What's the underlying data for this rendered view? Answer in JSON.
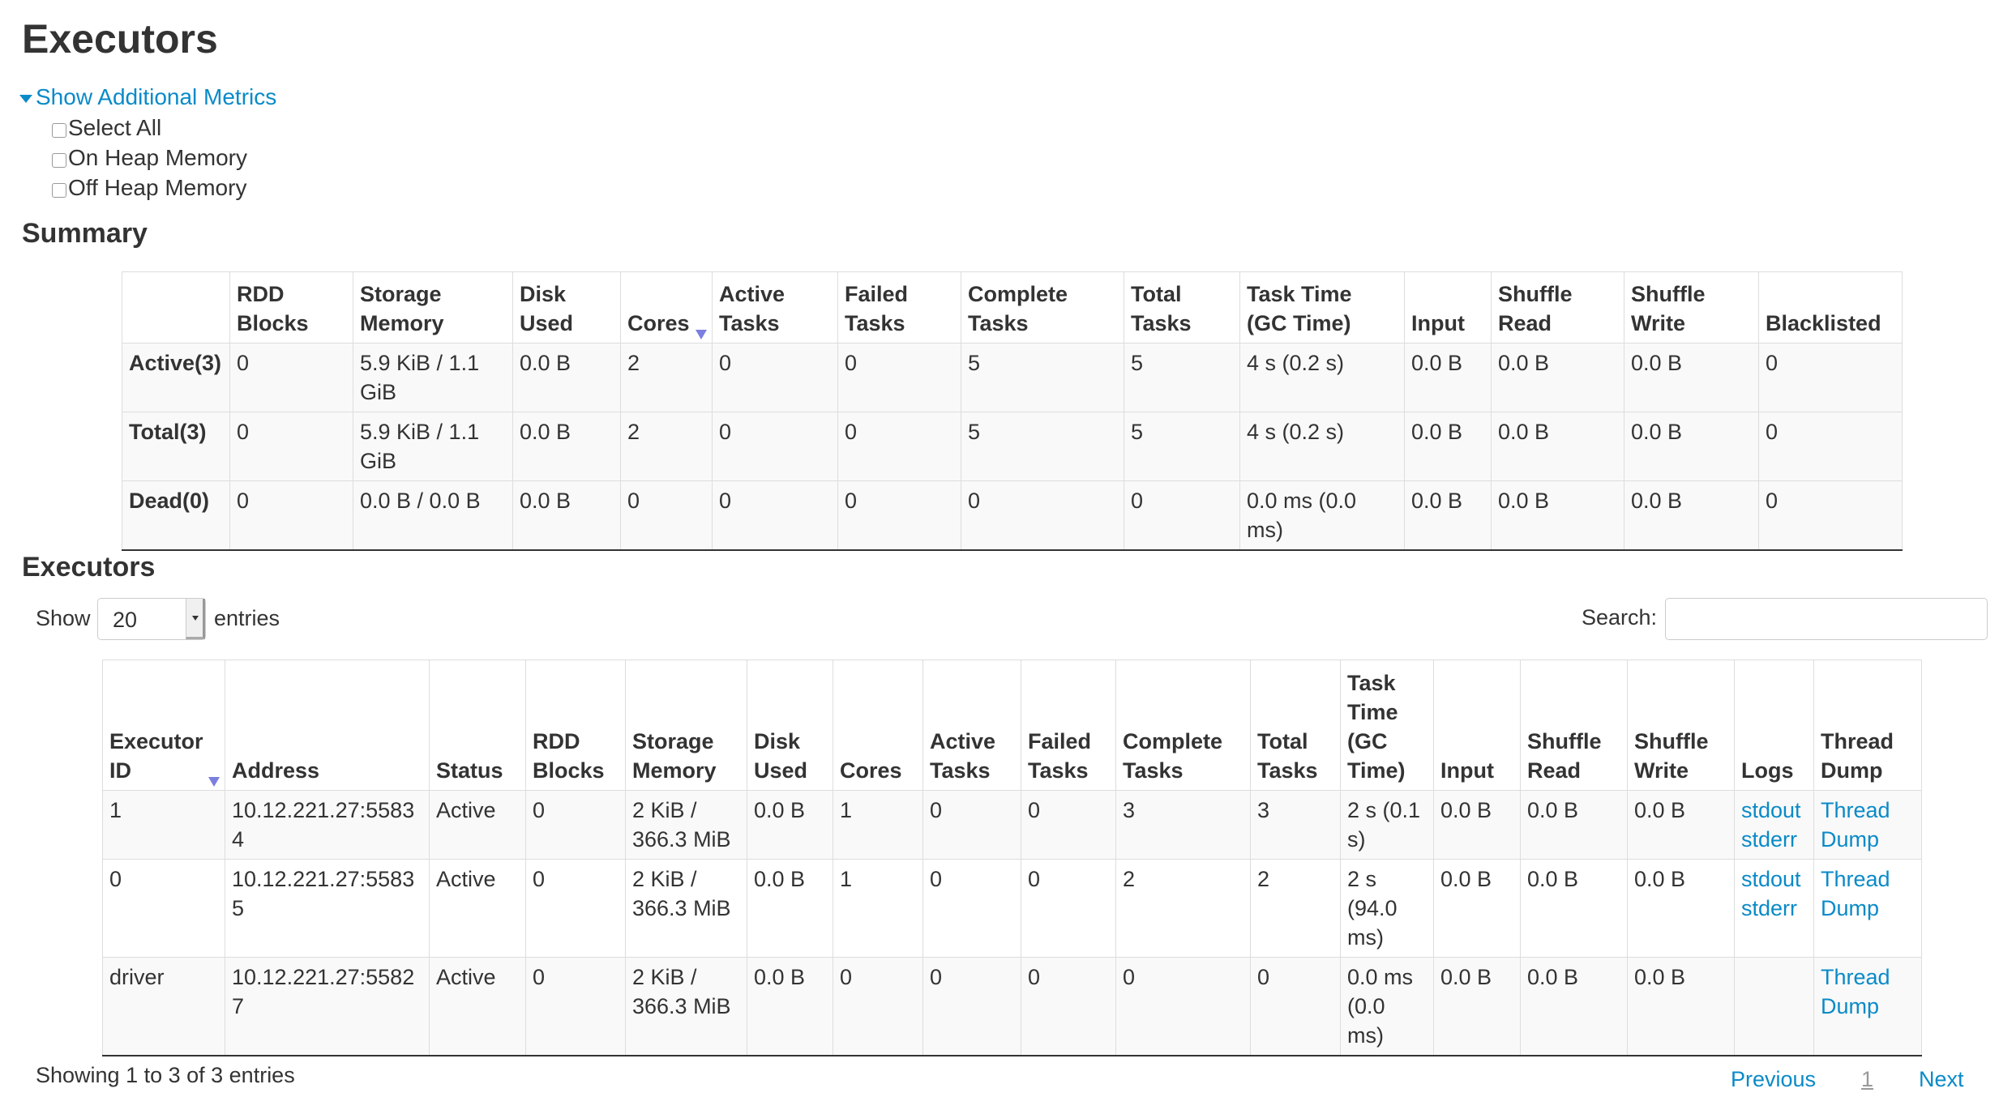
{
  "page_title": "Executors",
  "metrics": {
    "toggle_label": "Show Additional Metrics",
    "options": [
      {
        "label": "Select All",
        "checked": false
      },
      {
        "label": "On Heap Memory",
        "checked": false
      },
      {
        "label": "Off Heap Memory",
        "checked": false
      }
    ]
  },
  "summary": {
    "heading": "Summary",
    "columns": [
      "",
      "RDD Blocks",
      "Storage Memory",
      "Disk Used",
      "Cores",
      "Active Tasks",
      "Failed Tasks",
      "Complete Tasks",
      "Total Tasks",
      "Task Time (GC Time)",
      "Input",
      "Shuffle Read",
      "Shuffle Write",
      "Blacklisted"
    ],
    "sorted_column": "Cores",
    "rows": [
      [
        "Active(3)",
        "0",
        "5.9 KiB / 1.1 GiB",
        "0.0 B",
        "2",
        "0",
        "0",
        "5",
        "5",
        "4 s (0.2 s)",
        "0.0 B",
        "0.0 B",
        "0.0 B",
        "0"
      ],
      [
        "Total(3)",
        "0",
        "5.9 KiB / 1.1 GiB",
        "0.0 B",
        "2",
        "0",
        "0",
        "5",
        "5",
        "4 s (0.2 s)",
        "0.0 B",
        "0.0 B",
        "0.0 B",
        "0"
      ],
      [
        "Dead(0)",
        "0",
        "0.0 B / 0.0 B",
        "0.0 B",
        "0",
        "0",
        "0",
        "0",
        "0",
        "0.0 ms (0.0 ms)",
        "0.0 B",
        "0.0 B",
        "0.0 B",
        "0"
      ]
    ]
  },
  "executors": {
    "heading": "Executors",
    "show_label": "Show",
    "entries_label": "entries",
    "page_size": "20",
    "search_label": "Search:",
    "search_value": "",
    "columns": [
      "Executor ID",
      "Address",
      "Status",
      "RDD Blocks",
      "Storage Memory",
      "Disk Used",
      "Cores",
      "Active Tasks",
      "Failed Tasks",
      "Complete Tasks",
      "Total Tasks",
      "Task Time (GC Time)",
      "Input",
      "Shuffle Read",
      "Shuffle Write",
      "Logs",
      "Thread Dump"
    ],
    "sorted_column": "Executor ID",
    "rows": [
      {
        "cells": [
          "1",
          "10.12.221.27:55834",
          "Active",
          "0",
          "2 KiB / 366.3 MiB",
          "0.0 B",
          "1",
          "0",
          "0",
          "3",
          "3",
          "2 s (0.1 s)",
          "0.0 B",
          "0.0 B",
          "0.0 B"
        ],
        "logs": [
          "stdout",
          "stderr"
        ],
        "thread_dump": "Thread Dump"
      },
      {
        "cells": [
          "0",
          "10.12.221.27:55835",
          "Active",
          "0",
          "2 KiB / 366.3 MiB",
          "0.0 B",
          "1",
          "0",
          "0",
          "2",
          "2",
          "2 s (94.0 ms)",
          "0.0 B",
          "0.0 B",
          "0.0 B"
        ],
        "logs": [
          "stdout",
          "stderr"
        ],
        "thread_dump": "Thread Dump"
      },
      {
        "cells": [
          "driver",
          "10.12.221.27:55827",
          "Active",
          "0",
          "2 KiB / 366.3 MiB",
          "0.0 B",
          "0",
          "0",
          "0",
          "0",
          "0",
          "0.0 ms (0.0 ms)",
          "0.0 B",
          "0.0 B",
          "0.0 B"
        ],
        "logs": [],
        "thread_dump": "Thread Dump"
      }
    ],
    "info": "Showing 1 to 3 of 3 entries",
    "pagination": {
      "previous": "Previous",
      "current": "1",
      "next": "Next"
    }
  },
  "colors": {
    "link": "#0a8ac8",
    "sort_indicator": "#7a7fe0",
    "text": "#333333"
  }
}
